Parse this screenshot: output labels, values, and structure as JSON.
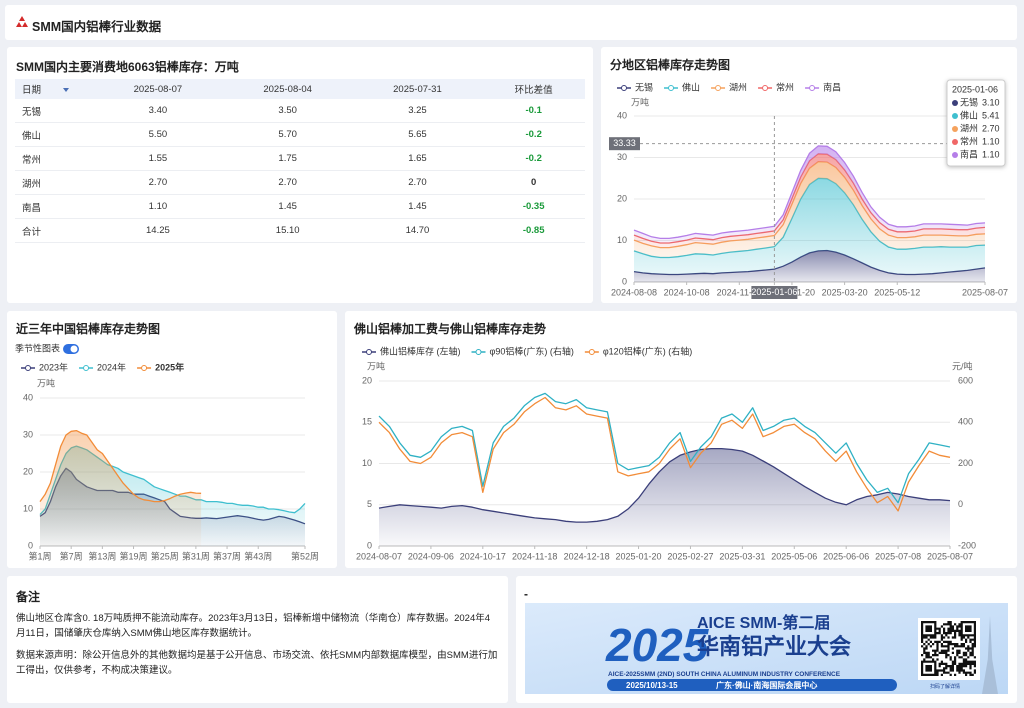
{
  "header": {
    "title": "SMM国内铝棒行业数据"
  },
  "table": {
    "title": "SMM国内主要消费地6063铝棒库存：万吨",
    "columns": [
      "日期",
      "2025-08-07",
      "2025-08-04",
      "2025-07-31",
      "环比差值"
    ],
    "rows": [
      [
        "无锡",
        "3.40",
        "3.50",
        "3.25",
        "-0.1"
      ],
      [
        "佛山",
        "5.50",
        "5.70",
        "5.65",
        "-0.2"
      ],
      [
        "常州",
        "1.55",
        "1.75",
        "1.65",
        "-0.2"
      ],
      [
        "湖州",
        "2.70",
        "2.70",
        "2.70",
        "0"
      ],
      [
        "南昌",
        "1.10",
        "1.45",
        "1.45",
        "-0.35"
      ],
      [
        "合计",
        "14.25",
        "15.10",
        "14.70",
        "-0.85"
      ]
    ]
  },
  "chart_data": [
    {
      "type": "area",
      "stacked": true,
      "title": "分地区铝棒库存走势图",
      "y_unit": "万吨",
      "grid": true,
      "pointer_y": 33.33,
      "categories": [
        "2024-08-08",
        null,
        null,
        null,
        null,
        null,
        "2024-10-08",
        null,
        null,
        null,
        null,
        null,
        "2024-11-21",
        null,
        null,
        null,
        "2025-01-06",
        null,
        "2025-01-20",
        null,
        null,
        null,
        null,
        null,
        "2025-03-20",
        null,
        null,
        null,
        null,
        null,
        "2025-05-12",
        null,
        null,
        null,
        null,
        null,
        null,
        null,
        null,
        null,
        "2025-08-07"
      ],
      "ylim": [
        0,
        40
      ],
      "yticks": [
        0,
        10,
        20,
        30,
        40
      ],
      "series": [
        {
          "name": "无锡",
          "color": "#3b3f7a",
          "values": [
            2.5,
            2.2,
            2.0,
            1.9,
            1.8,
            1.8,
            1.9,
            2.0,
            2.1,
            2.0,
            2.2,
            2.3,
            2.4,
            2.5,
            2.7,
            2.9,
            3.1,
            3.8,
            4.8,
            6.0,
            7.0,
            7.5,
            7.6,
            7.2,
            6.5,
            5.6,
            4.6,
            3.6,
            2.8,
            2.2,
            1.9,
            1.8,
            1.8,
            1.9,
            2.0,
            2.2,
            2.4,
            2.6,
            2.8,
            3.1,
            3.4
          ],
          "value_labels": [
            null,
            null,
            null,
            null,
            null,
            null,
            null,
            null,
            null,
            null,
            null,
            null,
            null,
            null,
            null,
            null,
            "3.10",
            null,
            null,
            null,
            null,
            null,
            null,
            null,
            null,
            null,
            null,
            null,
            null,
            null,
            null,
            null,
            null,
            null,
            null,
            null,
            null,
            null,
            null,
            null,
            null
          ]
        },
        {
          "name": "佛山",
          "color": "#3fbfcf",
          "values": [
            5.0,
            4.6,
            4.2,
            4.0,
            4.1,
            4.3,
            4.5,
            4.8,
            4.6,
            4.5,
            4.7,
            4.9,
            5.0,
            5.1,
            5.2,
            5.3,
            5.41,
            7.0,
            10.5,
            14.0,
            16.5,
            17.5,
            17.3,
            16.5,
            15.0,
            13.0,
            10.5,
            8.5,
            7.0,
            6.2,
            6.0,
            6.1,
            6.3,
            6.5,
            6.4,
            6.3,
            6.0,
            5.8,
            5.6,
            5.7,
            5.5
          ],
          "value_labels": [
            null,
            null,
            null,
            null,
            null,
            null,
            null,
            null,
            null,
            null,
            null,
            null,
            null,
            null,
            null,
            null,
            "5.41",
            null,
            null,
            null,
            null,
            null,
            null,
            null,
            null,
            null,
            null,
            null,
            null,
            null,
            null,
            null,
            null,
            null,
            null,
            null,
            null,
            null,
            null,
            null,
            null
          ]
        },
        {
          "name": "湖州",
          "color": "#f5a25d",
          "values": [
            2.6,
            2.5,
            2.5,
            2.4,
            2.4,
            2.5,
            2.6,
            2.7,
            2.6,
            2.6,
            2.7,
            2.7,
            2.7,
            2.7,
            2.7,
            2.7,
            2.7,
            3.0,
            3.4,
            3.7,
            3.9,
            4.0,
            4.0,
            3.9,
            3.7,
            3.5,
            3.3,
            3.1,
            3.0,
            2.9,
            2.8,
            2.8,
            2.8,
            2.9,
            2.9,
            2.8,
            2.8,
            2.7,
            2.7,
            2.7,
            2.7
          ],
          "value_labels": [
            null,
            null,
            null,
            null,
            null,
            null,
            null,
            null,
            null,
            null,
            null,
            null,
            null,
            null,
            null,
            null,
            "2.70",
            null,
            null,
            null,
            null,
            null,
            null,
            null,
            null,
            null,
            null,
            null,
            null,
            null,
            null,
            null,
            null,
            null,
            null,
            null,
            null,
            null,
            null,
            null,
            null
          ]
        },
        {
          "name": "常州",
          "color": "#f06767",
          "values": [
            1.2,
            1.2,
            1.1,
            1.1,
            1.1,
            1.1,
            1.1,
            1.1,
            1.1,
            1.1,
            1.1,
            1.1,
            1.1,
            1.1,
            1.1,
            1.1,
            1.1,
            1.2,
            1.4,
            1.6,
            1.8,
            1.9,
            1.9,
            1.9,
            1.8,
            1.7,
            1.6,
            1.5,
            1.5,
            1.4,
            1.4,
            1.4,
            1.4,
            1.5,
            1.5,
            1.5,
            1.5,
            1.5,
            1.5,
            1.5,
            1.55
          ],
          "value_labels": [
            null,
            null,
            null,
            null,
            null,
            null,
            null,
            null,
            null,
            null,
            null,
            null,
            null,
            null,
            null,
            null,
            "1.10",
            null,
            null,
            null,
            null,
            null,
            null,
            null,
            null,
            null,
            null,
            null,
            null,
            null,
            null,
            null,
            null,
            null,
            null,
            null,
            null,
            null,
            null,
            null,
            null
          ]
        },
        {
          "name": "南昌",
          "color": "#b57ee8",
          "values": [
            1.2,
            1.2,
            1.1,
            1.1,
            1.1,
            1.1,
            1.1,
            1.1,
            1.1,
            1.1,
            1.1,
            1.1,
            1.1,
            1.1,
            1.1,
            1.1,
            1.1,
            1.2,
            1.4,
            1.6,
            1.8,
            1.9,
            1.9,
            1.9,
            1.8,
            1.7,
            1.6,
            1.4,
            1.3,
            1.2,
            1.2,
            1.2,
            1.2,
            1.2,
            1.2,
            1.2,
            1.2,
            1.2,
            1.1,
            1.1,
            1.1
          ],
          "value_labels": [
            null,
            null,
            null,
            null,
            null,
            null,
            null,
            null,
            null,
            null,
            null,
            null,
            null,
            null,
            null,
            null,
            "1.10",
            null,
            null,
            null,
            null,
            null,
            null,
            null,
            null,
            null,
            null,
            null,
            null,
            null,
            null,
            null,
            null,
            null,
            null,
            null,
            null,
            null,
            null,
            null,
            null
          ]
        }
      ]
    },
    {
      "type": "line",
      "title": "近三年中国铝棒库存走势图",
      "toggle_label": "季节性图表",
      "y_unit": "万吨",
      "grid": true,
      "categories": [
        "第1周",
        null,
        null,
        null,
        null,
        null,
        "第7周",
        null,
        null,
        null,
        null,
        null,
        "第13周",
        null,
        null,
        null,
        null,
        null,
        "第19周",
        null,
        null,
        null,
        null,
        null,
        "第25周",
        null,
        null,
        null,
        null,
        null,
        "第31周",
        null,
        null,
        null,
        null,
        null,
        "第37周",
        null,
        null,
        null,
        null,
        null,
        "第43周",
        null,
        null,
        null,
        null,
        null,
        null,
        null,
        null,
        "第52周"
      ],
      "ylim": [
        0,
        40
      ],
      "yticks": [
        0,
        10,
        20,
        30,
        40
      ],
      "series": [
        {
          "name": "2023年",
          "color": "#3b3f7a",
          "values": [
            8,
            9,
            12,
            16,
            19,
            21,
            20,
            18,
            17,
            16,
            15.5,
            15,
            15,
            15,
            15,
            14.5,
            14.5,
            14.5,
            14,
            14,
            14,
            13.5,
            13,
            12.5,
            12,
            10,
            9,
            8,
            7.8,
            7.6,
            7.5,
            7.5,
            7.6,
            7.5,
            7.4,
            7.6,
            7.8,
            8,
            8.2,
            8,
            7.8,
            7.5,
            7.2,
            7,
            7.2,
            7.6,
            8,
            7.8,
            7.4,
            7,
            6.5,
            6
          ]
        },
        {
          "name": "2024年",
          "color": "#3fbfcf",
          "values": [
            8.5,
            10,
            14,
            18,
            22,
            25,
            26.5,
            27,
            26.5,
            26,
            25,
            24,
            23,
            22,
            21.5,
            21,
            20,
            19.5,
            19,
            18.5,
            18,
            17,
            16,
            15.5,
            15,
            14.5,
            14,
            13.5,
            13.5,
            13,
            12.5,
            12.5,
            12,
            12,
            12,
            11.8,
            11.5,
            11.5,
            11.2,
            11,
            11,
            10.8,
            10.5,
            10.5,
            10,
            10,
            9.8,
            9.5,
            9.2,
            9,
            10,
            11.5
          ]
        },
        {
          "name": "2025年",
          "color": "#f28c38",
          "values": [
            12,
            14,
            17,
            22,
            27,
            30,
            31,
            31.2,
            30.5,
            30,
            28,
            26,
            25,
            23,
            21,
            19,
            17,
            15.5,
            14,
            13,
            12.5,
            12.3,
            12,
            12,
            12.3,
            12.8,
            13.5,
            14,
            14.3,
            14.5,
            14.3,
            14.25,
            null,
            null,
            null,
            null,
            null,
            null,
            null,
            null,
            null,
            null,
            null,
            null,
            null,
            null,
            null,
            null,
            null,
            null,
            null,
            null
          ]
        }
      ]
    },
    {
      "type": "line",
      "title": "佛山铝棒加工费与佛山铝棒库存走势",
      "y_unit": "万吨",
      "y2_unit": "元/吨",
      "grid": true,
      "categories": [
        "2024-08-07",
        null,
        null,
        null,
        null,
        "2024-09-06",
        null,
        null,
        null,
        null,
        "2024-10-17",
        null,
        null,
        null,
        null,
        "2024-11-18",
        null,
        null,
        null,
        null,
        "2024-12-18",
        null,
        null,
        null,
        null,
        "2025-01-20",
        null,
        null,
        null,
        null,
        "2025-02-27",
        null,
        null,
        null,
        null,
        "2025-03-31",
        null,
        null,
        null,
        null,
        "2025-05-06",
        null,
        null,
        null,
        null,
        "2025-06-06",
        null,
        null,
        null,
        null,
        "2025-07-08",
        null,
        null,
        null,
        null,
        "2025-08-07"
      ],
      "ylim": [
        0,
        20
      ],
      "yticks": [
        0,
        5,
        10,
        15,
        20
      ],
      "y2lim": [
        -200,
        600
      ],
      "y2ticks": [
        -200,
        0,
        200,
        400,
        600
      ],
      "series": [
        {
          "name": "佛山铝棒库存 (左轴)",
          "color": "#3b3f7a",
          "axis": "y",
          "values": [
            4.6,
            4.8,
            5.0,
            4.9,
            4.8,
            4.7,
            4.6,
            4.8,
            4.9,
            4.7,
            4.4,
            4.2,
            4.0,
            3.8,
            3.6,
            3.4,
            3.3,
            3.2,
            3.0,
            2.9,
            2.9,
            3.0,
            3.2,
            3.6,
            4.5,
            5.8,
            7.5,
            9.0,
            10.2,
            11.0,
            11.4,
            11.7,
            11.8,
            11.8,
            11.7,
            11.5,
            11.0,
            10.3,
            9.6,
            8.8,
            8.0,
            7.2,
            6.5,
            5.8,
            5.3,
            5.0,
            5.6,
            6.0,
            6.2,
            6.5,
            6.3,
            6.0,
            5.8,
            5.6,
            5.6,
            5.5
          ]
        },
        {
          "name": "φ90铝棒(广东) (右轴)",
          "color": "#2fb1c4",
          "axis": "y2",
          "values": [
            430,
            380,
            300,
            240,
            230,
            260,
            330,
            370,
            380,
            360,
            90,
            300,
            380,
            420,
            480,
            520,
            540,
            500,
            490,
            510,
            470,
            460,
            450,
            200,
            170,
            180,
            190,
            230,
            300,
            350,
            210,
            280,
            330,
            420,
            440,
            400,
            470,
            360,
            380,
            410,
            420,
            380,
            350,
            300,
            250,
            300,
            200,
            120,
            60,
            80,
            10,
            150,
            220,
            300,
            290,
            280
          ]
        },
        {
          "name": "φ120铝棒(广东) (右轴)",
          "color": "#f28c38",
          "axis": "y2",
          "values": [
            400,
            350,
            270,
            210,
            200,
            230,
            300,
            340,
            350,
            330,
            60,
            270,
            350,
            390,
            450,
            490,
            520,
            470,
            460,
            480,
            440,
            430,
            420,
            160,
            140,
            150,
            160,
            200,
            270,
            320,
            180,
            250,
            300,
            390,
            410,
            370,
            440,
            330,
            350,
            380,
            390,
            350,
            320,
            260,
            210,
            260,
            160,
            80,
            10,
            40,
            -30,
            110,
            190,
            260,
            240,
            230
          ]
        }
      ]
    }
  ],
  "notes": {
    "title": "备注",
    "paragraphs": [
      "佛山地区仓库含0. 18万吨质押不能流动库存。2023年3月13日，铝棒新增中储物流（华南仓）库存数据。2024年4月11日，国储肇庆仓库纳入SMM佛山地区库存数据统计。",
      "数据来源声明：除公开信息外的其他数据均是基于公开信息、市场交流、依托SMM内部数据库模型，由SMM进行加工得出，仅供参考，不构成决策建议。"
    ]
  },
  "banner": {
    "title": "-",
    "year": "2025",
    "name": "AICE SMM-第二届",
    "conference": "华南铝产业大会",
    "english": "AICE-2025SMM (2ND) SOUTH CHINA ALUMINUM INDUSTRY CONFERENCE",
    "date": "2025/10/13-15",
    "venue": "广东·佛山·南海国际会展中心",
    "qr_caption": "扫码了解详情"
  }
}
